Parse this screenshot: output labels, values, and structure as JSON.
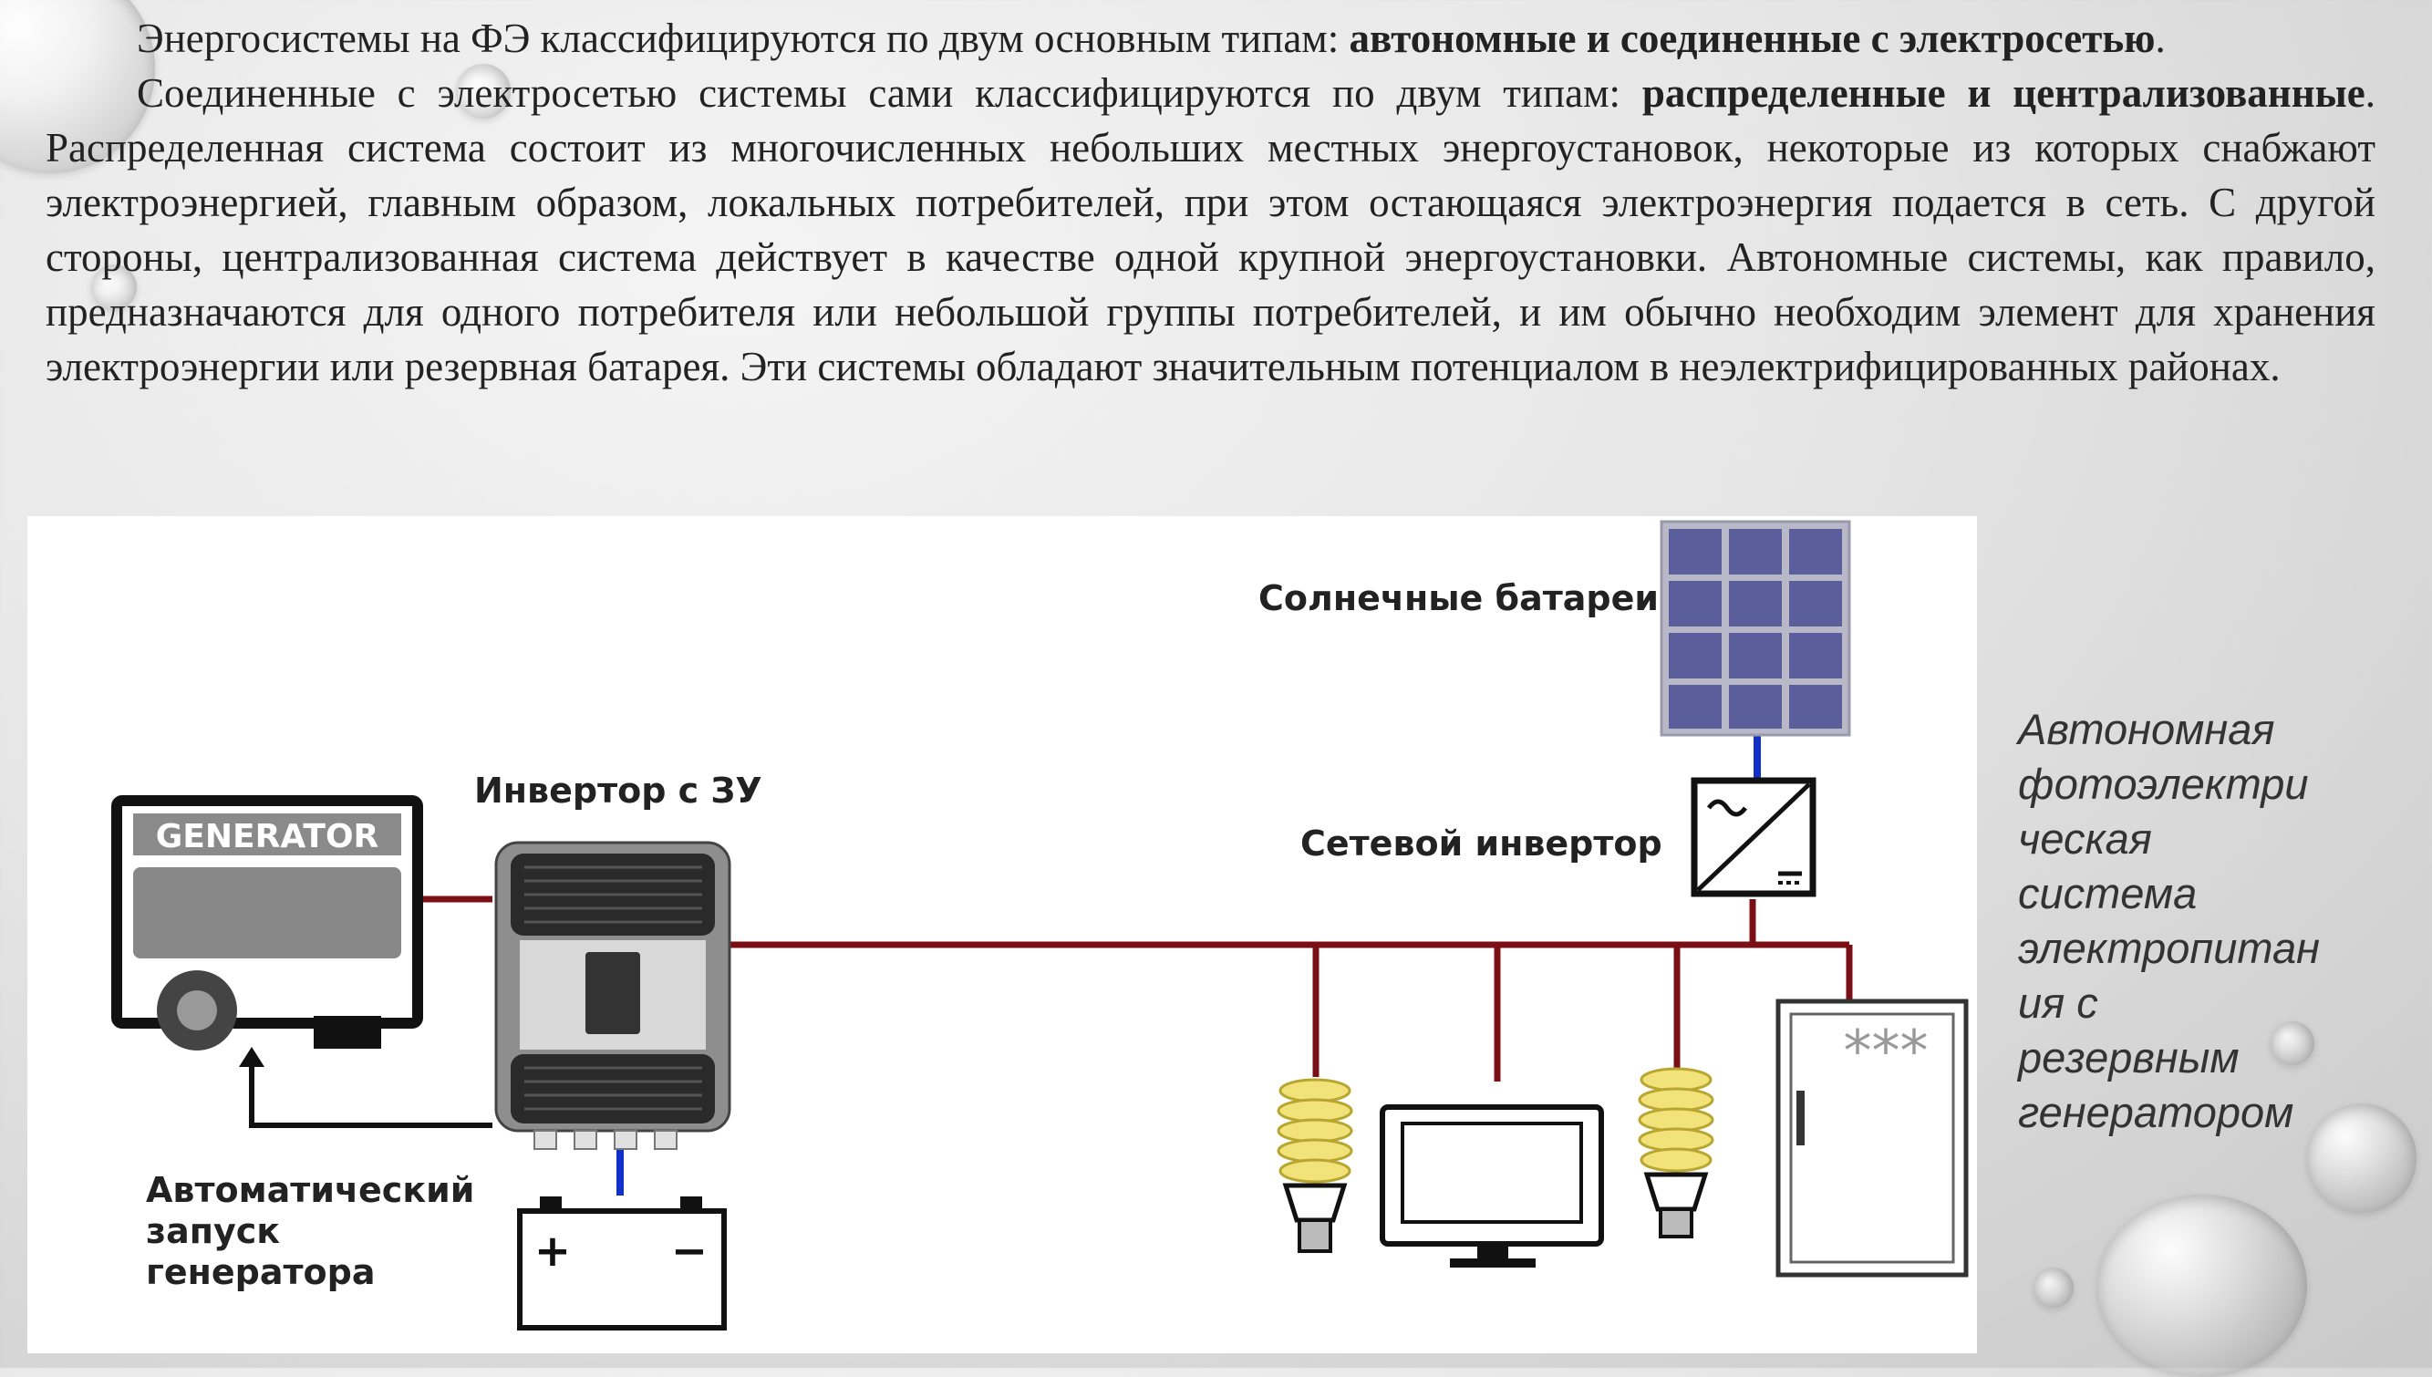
{
  "text": {
    "p1": {
      "start": "Энергосистемы на ФЭ классифицируются по двум основным типам: ",
      "bold": "автономные и соединенные с электросетью",
      "end": "."
    },
    "p2": {
      "start": "Соединенные с электросетью системы сами классифицируются по двум типам: ",
      "bold": "распределенные и централизованные",
      "end": ". Распределенная система состоит из многочисленных небольших местных энергоустановок, некоторые из которых снабжают электроэнергией, главным образом, локальных потребителей, при этом остающаяся электроэнергия подается в сеть. С другой стороны, централизованная система действует в качестве одной крупной энергоустановки. Автономные системы, как правило, предназначаются для одного потребителя или небольшой группы потребителей, и им обычно необходим элемент для хранения электроэнергии или резервная батарея. Эти системы обладают значительным потенциалом в неэлектрифицированных районах."
    }
  },
  "diagram": {
    "generator_label": "GENERATOR",
    "inverter_charger_label": "Инвертор с ЗУ",
    "solar_label": "Солнечные батареи",
    "grid_inverter_label": "Сетевой инвертор",
    "auto_start_lines": [
      "Автоматический",
      "запуск",
      "генератора"
    ],
    "battery_plus": "+",
    "battery_minus": "−",
    "fridge_marks": "***"
  },
  "caption": {
    "lines": [
      "Автономная",
      "фотоэлектри",
      "ческая",
      "система",
      "электропитан",
      "ия с",
      "резервным",
      "генератором"
    ]
  },
  "colors": {
    "bus": "#7a1016",
    "dc_wire": "#1030c8",
    "panel_cell": "#5a5e9a",
    "panel_frame": "#b8b8c8"
  }
}
